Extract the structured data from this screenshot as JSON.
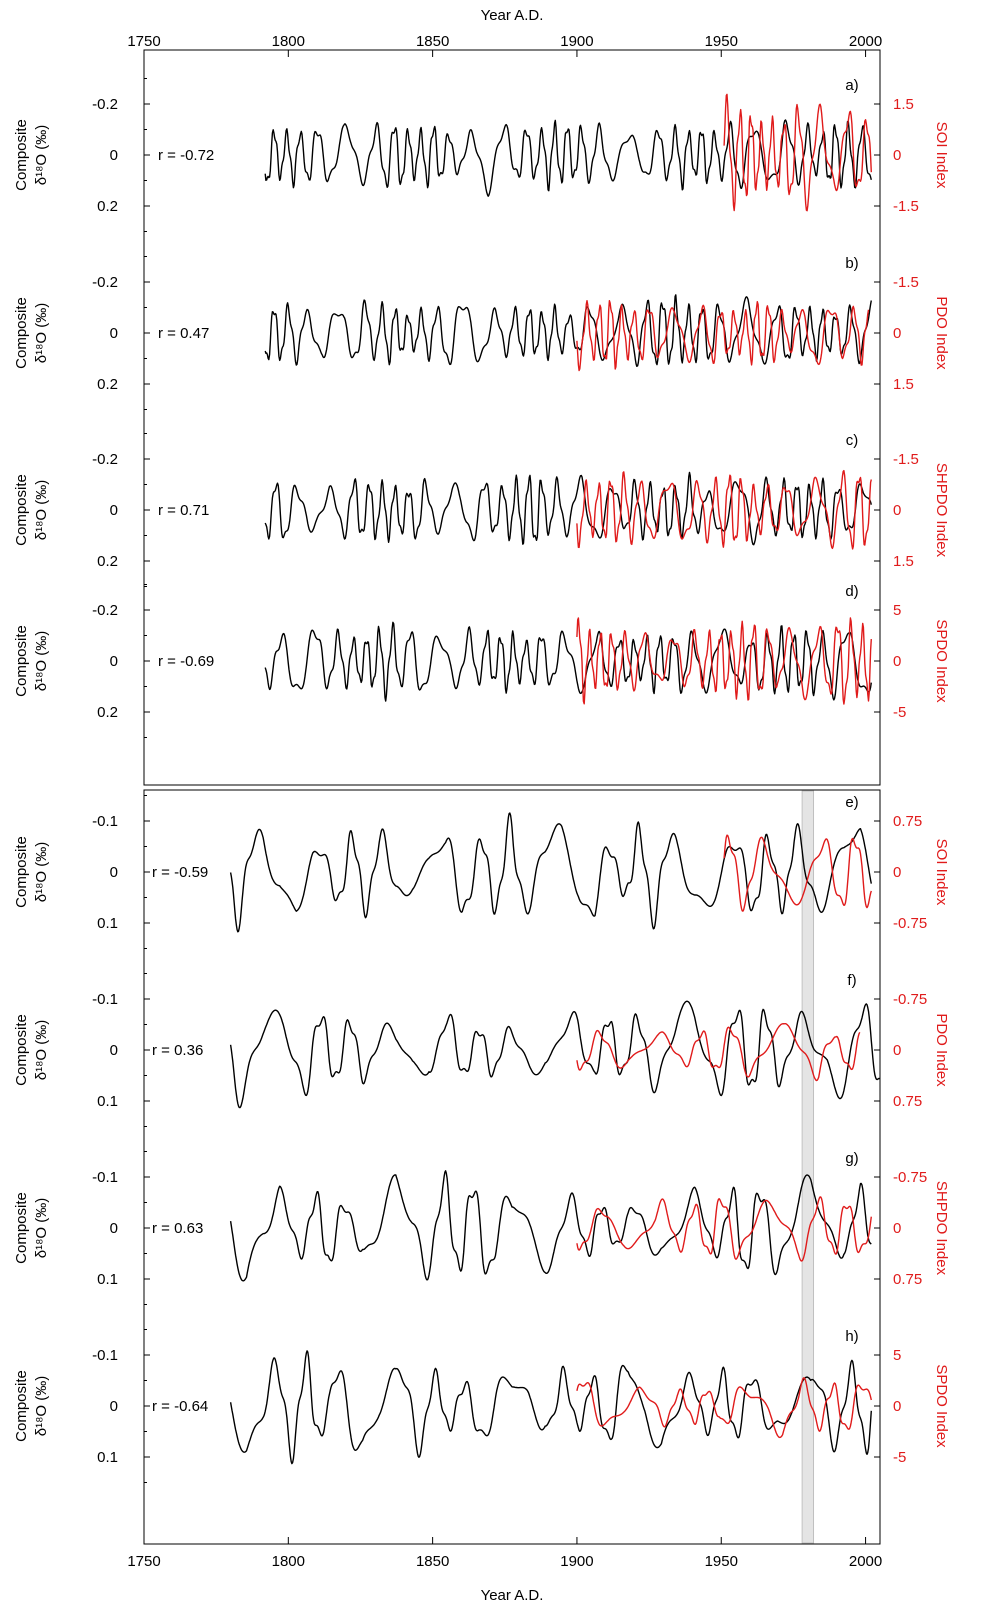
{
  "chart_data": {
    "type": "line",
    "x_axis": {
      "label": "Year A.D.",
      "range": [
        1750,
        2005
      ],
      "ticks": [
        1750,
        1800,
        1850,
        1900,
        1950,
        2000
      ],
      "tick_labels": [
        "1750",
        "1800",
        "1850",
        "1900",
        "1950",
        "2000"
      ]
    },
    "colors": {
      "composite": "#000000",
      "index": "#e01b1b",
      "shading": "#d9d9d9"
    },
    "lower_block_shading": {
      "x_start": 1978,
      "x_end": 1982
    },
    "panels": [
      {
        "id": "a",
        "panel_label": "a)",
        "r_text": "r = -0.72",
        "left_label_line1": "Composite",
        "left_label_line2": "δ¹⁸O (‰)",
        "left_ticks": [
          "-0.2",
          "0",
          "0.2"
        ],
        "left_tick_values": [
          -0.2,
          0,
          0.2
        ],
        "right_label": "SOI Index",
        "right_ticks": [
          "1.5",
          "0",
          "-1.5"
        ],
        "right_tick_values": [
          1.5,
          0,
          -1.5
        ],
        "composite": {
          "x_start": 1792,
          "x_end": 2002,
          "period": 5.2,
          "amplitude": 0.13
        },
        "index": {
          "x_start": 1951,
          "x_end": 2002,
          "period": 4.3,
          "amplitude": 1.5
        }
      },
      {
        "id": "b",
        "panel_label": "b)",
        "r_text": "r = 0.47",
        "left_label_line1": "Composite",
        "left_label_line2": "δ¹⁸O (‰)",
        "left_ticks": [
          "-0.2",
          "0",
          "0.2"
        ],
        "left_tick_values": [
          -0.2,
          0,
          0.2
        ],
        "right_label": "PDO Index",
        "right_ticks": [
          "-1.5",
          "0",
          "1.5"
        ],
        "right_tick_values": [
          -1.5,
          0,
          1.5
        ],
        "composite": {
          "x_start": 1792,
          "x_end": 2002,
          "period": 5.2,
          "amplitude": 0.13
        },
        "index": {
          "x_start": 1900,
          "x_end": 2001,
          "period": 4.6,
          "amplitude": 1.0
        }
      },
      {
        "id": "c",
        "panel_label": "c)",
        "r_text": "r = 0.71",
        "left_label_line1": "Composite",
        "left_label_line2": "δ¹⁸O (‰)",
        "left_ticks": [
          "-0.2",
          "0",
          "0.2"
        ],
        "left_tick_values": [
          -0.2,
          0,
          0.2
        ],
        "right_label": "SHPDO Index",
        "right_ticks": [
          "-1.5",
          "0",
          "1.5"
        ],
        "right_tick_values": [
          -1.5,
          0,
          1.5
        ],
        "composite": {
          "x_start": 1792,
          "x_end": 2002,
          "period": 5.2,
          "amplitude": 0.13
        },
        "index": {
          "x_start": 1900,
          "x_end": 2002,
          "period": 5.0,
          "amplitude": 1.1
        }
      },
      {
        "id": "d",
        "panel_label": "d)",
        "r_text": "r = -0.69",
        "left_label_line1": "Composite",
        "left_label_line2": "δ¹⁸O (‰)",
        "left_ticks": [
          "-0.2",
          "0",
          "0.2"
        ],
        "left_tick_values": [
          -0.2,
          0,
          0.2
        ],
        "right_label": "SPDO Index",
        "right_ticks": [
          "5",
          "0",
          "-5"
        ],
        "right_tick_values": [
          5,
          0,
          -5
        ],
        "composite": {
          "x_start": 1792,
          "x_end": 2002,
          "period": 5.2,
          "amplitude": 0.13
        },
        "index": {
          "x_start": 1900,
          "x_end": 2002,
          "period": 4.4,
          "amplitude": 3.8
        }
      },
      {
        "id": "e",
        "panel_label": "e)",
        "r_text": "r = -0.59",
        "left_label_line1": "Composite",
        "left_label_line2": "δ¹⁸O (‰)",
        "left_ticks": [
          "-0.1",
          "0",
          "0.1"
        ],
        "left_tick_values": [
          -0.1,
          0,
          0.1
        ],
        "right_label": "SOI Index",
        "right_ticks": [
          "0.75",
          "0",
          "-0.75"
        ],
        "right_tick_values": [
          0.75,
          0,
          -0.75
        ],
        "composite": {
          "x_start": 1780,
          "x_end": 2002,
          "period": 11.5,
          "amplitude": 0.09
        },
        "index": {
          "x_start": 1951,
          "x_end": 2002,
          "period": 11.0,
          "amplitude": 0.55
        }
      },
      {
        "id": "f",
        "panel_label": "f)",
        "r_text": "r = 0.36",
        "left_label_line1": "Composite",
        "left_label_line2": "δ¹⁸O (‰)",
        "left_ticks": [
          "-0.1",
          "0",
          "0.1"
        ],
        "left_tick_values": [
          -0.1,
          0,
          0.1
        ],
        "right_label": "PDO Index",
        "right_ticks": [
          "-0.75",
          "0",
          "0.75"
        ],
        "right_tick_values": [
          -0.75,
          0,
          0.75
        ],
        "composite": {
          "x_start": 1780,
          "x_end": 2005,
          "period": 11.5,
          "amplitude": 0.09
        },
        "index": {
          "x_start": 1900,
          "x_end": 1998,
          "period": 12.0,
          "amplitude": 0.35
        }
      },
      {
        "id": "g",
        "panel_label": "g)",
        "r_text": "r = 0.63",
        "left_label_line1": "Composite",
        "left_label_line2": "δ¹⁸O (‰)",
        "left_ticks": [
          "-0.1",
          "0",
          "0.1"
        ],
        "left_tick_values": [
          -0.1,
          0,
          0.1
        ],
        "right_label": "SHPDO Index",
        "right_ticks": [
          "-0.75",
          "0",
          "0.75"
        ],
        "right_tick_values": [
          -0.75,
          0,
          0.75
        ],
        "composite": {
          "x_start": 1780,
          "x_end": 2002,
          "period": 11.5,
          "amplitude": 0.09
        },
        "index": {
          "x_start": 1900,
          "x_end": 2002,
          "period": 11.0,
          "amplitude": 0.45
        }
      },
      {
        "id": "h",
        "panel_label": "h)",
        "r_text": "r = -0.64",
        "left_label_line1": "Composite",
        "left_label_line2": "δ¹⁸O (‰)",
        "left_ticks": [
          "-0.1",
          "0",
          "0.1"
        ],
        "left_tick_values": [
          -0.1,
          0,
          0.1
        ],
        "right_label": "SPDO Index",
        "right_ticks": [
          "5",
          "0",
          "-5"
        ],
        "right_tick_values": [
          5,
          0,
          -5
        ],
        "composite": {
          "x_start": 1780,
          "x_end": 2002,
          "period": 11.5,
          "amplitude": 0.09
        },
        "index": {
          "x_start": 1900,
          "x_end": 2002,
          "period": 11.0,
          "amplitude": 2.8
        }
      }
    ]
  }
}
